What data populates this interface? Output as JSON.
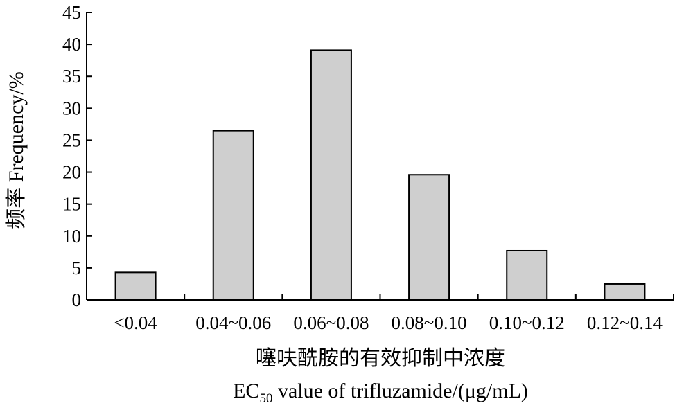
{
  "chart_data": {
    "type": "bar",
    "categories": [
      "<0.04",
      "0.04~0.06",
      "0.06~0.08",
      "0.08~0.10",
      "0.10~0.12",
      "0.12~0.14"
    ],
    "values": [
      4.3,
      26.5,
      39.1,
      19.6,
      7.7,
      2.5
    ],
    "ylabel": "频率 Frequency/%",
    "xlabel_cn": "噻呋酰胺的有效抑制中浓度",
    "xlabel_en": {
      "prefix": "EC",
      "subscript": "50",
      "suffix": " value of trifluzamide/(μg/mL)"
    },
    "ylim": [
      0,
      45
    ],
    "yticks": [
      0,
      5,
      10,
      15,
      20,
      25,
      30,
      35,
      40,
      45
    ],
    "grid": false,
    "bar_color": "#cfcfcf",
    "edge_color": "#000000"
  }
}
